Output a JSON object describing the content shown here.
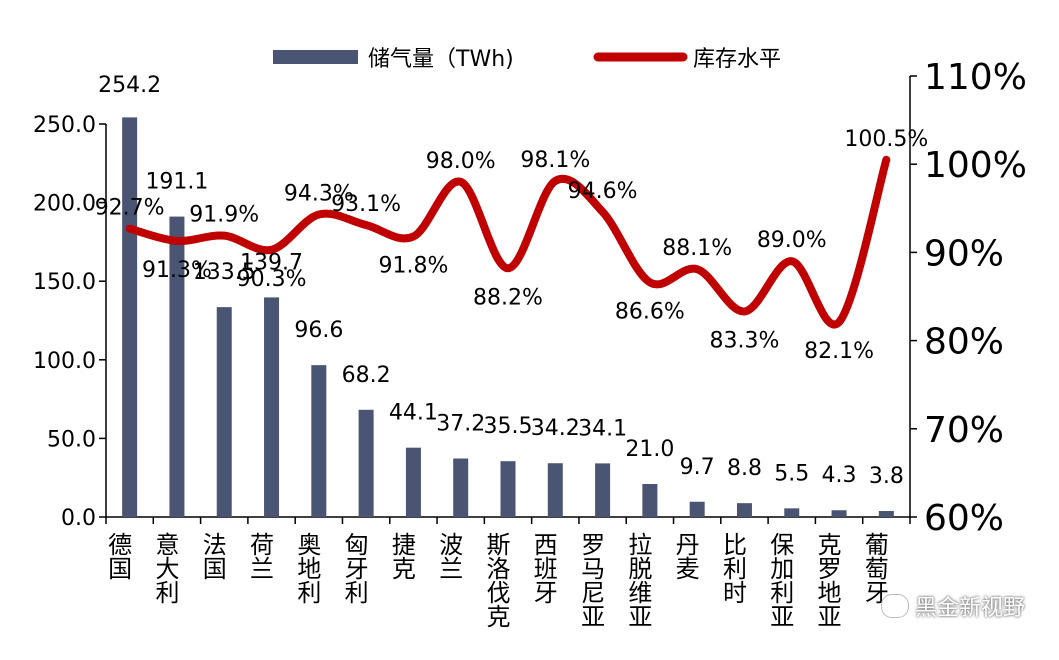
{
  "chart_data": {
    "type": "bar",
    "categories": [
      "德国",
      "意大利",
      "法国",
      "荷兰",
      "奥地利",
      "匈牙利",
      "捷克",
      "波兰",
      "斯洛伐克",
      "西班牙",
      "罗马尼亚",
      "拉脱维亚",
      "丹麦",
      "比利时",
      "保加利亚",
      "克罗地亚",
      "葡萄牙"
    ],
    "series": [
      {
        "name": "储气量（TWh)",
        "kind": "bar",
        "axis": "left",
        "color": "#4a5573",
        "values": [
          254.2,
          191.1,
          133.5,
          139.7,
          96.6,
          68.2,
          44.1,
          37.2,
          35.5,
          34.2,
          34.1,
          21.0,
          9.7,
          8.8,
          5.5,
          4.3,
          3.8
        ],
        "labels": [
          "254.2",
          "191.1",
          "133.5",
          "139.7",
          "96.6",
          "68.2",
          "44.1",
          "37.2",
          "35.5",
          "34.2",
          "34.1",
          "21.0",
          "9.7",
          "8.8",
          "5.5",
          "4.3",
          "3.8"
        ]
      },
      {
        "name": "库存水平",
        "kind": "line",
        "axis": "right",
        "color": "#c00000",
        "smooth": true,
        "values": [
          92.7,
          91.3,
          91.9,
          90.3,
          94.3,
          93.1,
          91.8,
          98.0,
          88.2,
          98.1,
          94.6,
          86.6,
          88.1,
          83.3,
          89.0,
          82.1,
          100.5
        ],
        "labels": [
          "92.7%",
          "91.3%",
          "91.9%",
          "90.3%",
          "94.3%",
          "93.1%",
          "91.8%",
          "98.0%",
          "88.2%",
          "98.1%",
          "94.6%",
          "86.6%",
          "88.1%",
          "83.3%",
          "89.0%",
          "82.1%",
          "100.5%"
        ]
      }
    ],
    "left_axis": {
      "ylim": [
        0,
        250
      ],
      "ticks": [
        "0.0",
        "50.0",
        "100.0",
        "150.0",
        "200.0",
        "250.0"
      ]
    },
    "right_axis": {
      "ylim": [
        60,
        110
      ],
      "ticks": [
        "60%",
        "70%",
        "80%",
        "90%",
        "100%",
        "110%"
      ]
    },
    "legend_position": "top-center",
    "grid": false
  },
  "watermark": "黑金新视野"
}
